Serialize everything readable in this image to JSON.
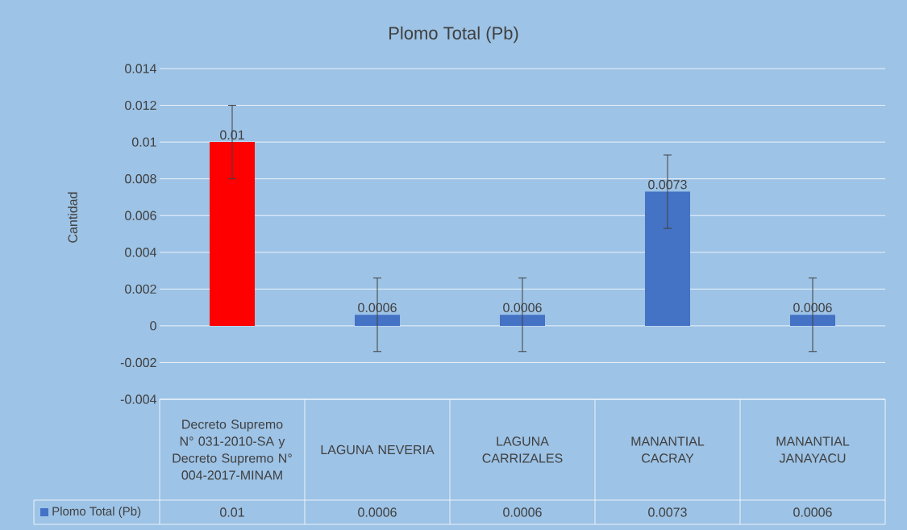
{
  "chart_data": {
    "type": "bar",
    "title": "Plomo Total (Pb)",
    "ylabel": "Cantidad",
    "categories": [
      "Decreto Supremo N° 031-2010-SA y Decreto Supremo N° 004-2017-MINAM",
      "LAGUNA NEVERIA",
      "LAGUNA CARRIZALES",
      "MANANTIAL CACRAY",
      "MANANTIAL JANAYACU"
    ],
    "series": [
      {
        "name": "Plomo Total (Pb)",
        "color": "#4472c4",
        "colors": [
          "#ff0000",
          "#4472c4",
          "#4472c4",
          "#4472c4",
          "#4472c4"
        ],
        "values": [
          0.01,
          0.0006,
          0.0006,
          0.0073,
          0.0006
        ],
        "value_labels": [
          "0.01",
          "0.0006",
          "0.0006",
          "0.0073",
          "0.0006"
        ],
        "errors": [
          0.002,
          0.002,
          0.002,
          0.002,
          0.002
        ]
      }
    ],
    "ylim": [
      -0.004,
      0.014
    ],
    "yticks": [
      -0.004,
      -0.002,
      0,
      0.002,
      0.004,
      0.006,
      0.008,
      0.01,
      0.012,
      0.014
    ],
    "annotations": [
      "0.01",
      "0.0006",
      "0.0006",
      "0.0073",
      "0.0006"
    ],
    "grid": "y",
    "legend": "bottom"
  }
}
